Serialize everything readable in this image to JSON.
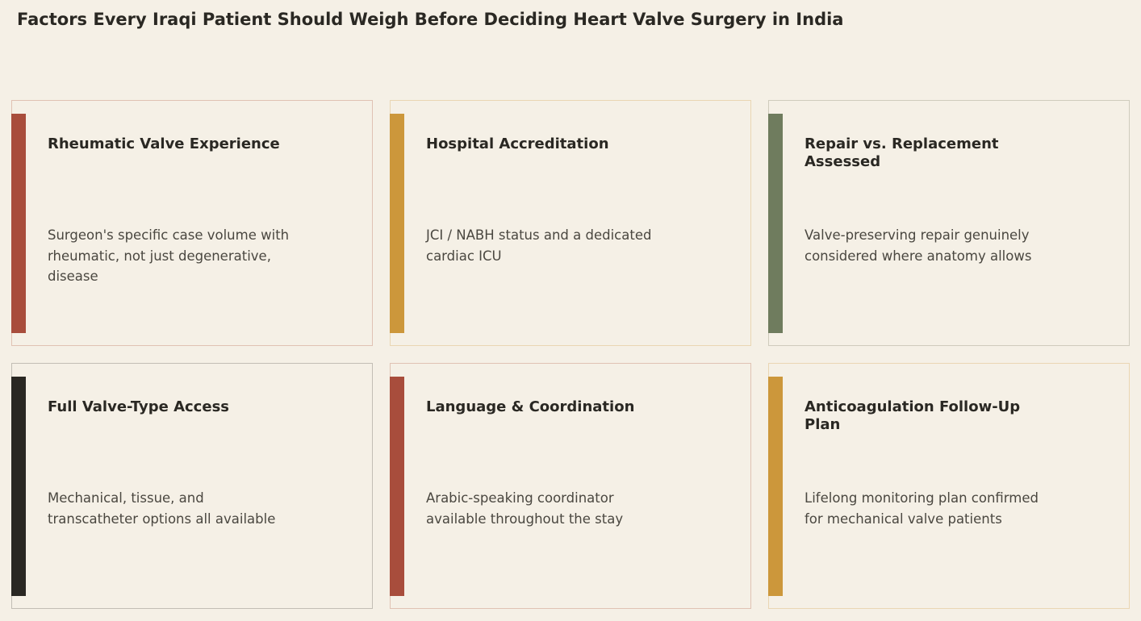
{
  "title": "Factors Every Iraqi Patient Should Weigh Before Deciding Heart Valve Surgery in India",
  "colors": {
    "background": "#f5f0e6",
    "rust": "#a84d3c",
    "ochre": "#cc973b",
    "olive": "#6f7c5e",
    "charcoal": "#2a2823"
  },
  "cards": [
    {
      "title": "Rheumatic Valve Experience",
      "description": "Surgeon's specific case volume with rheumatic, not just degenerative, disease",
      "accent": "#a84d3c",
      "border": "#e0c2b3"
    },
    {
      "title": "Hospital Accreditation",
      "description": "JCI / NABH status and a dedicated cardiac ICU",
      "accent": "#cc973b",
      "border": "#ead6b3"
    },
    {
      "title": "Repair vs. Replacement Assessed",
      "description": "Valve-preserving repair genuinely considered where anatomy allows",
      "accent": "#6f7c5e",
      "border": "#cfcbbd"
    },
    {
      "title": "Full Valve-Type Access",
      "description": "Mechanical, tissue, and transcatheter options all available",
      "accent": "#2a2823",
      "border": "#c2beb5"
    },
    {
      "title": "Language & Coordination",
      "description": "Arabic-speaking coordinator available throughout the stay",
      "accent": "#a84d3c",
      "border": "#e0c2b3"
    },
    {
      "title": "Anticoagulation Follow-Up Plan",
      "description": "Lifelong monitoring plan confirmed for mechanical valve patients",
      "accent": "#cc973b",
      "border": "#ead6b3"
    }
  ]
}
